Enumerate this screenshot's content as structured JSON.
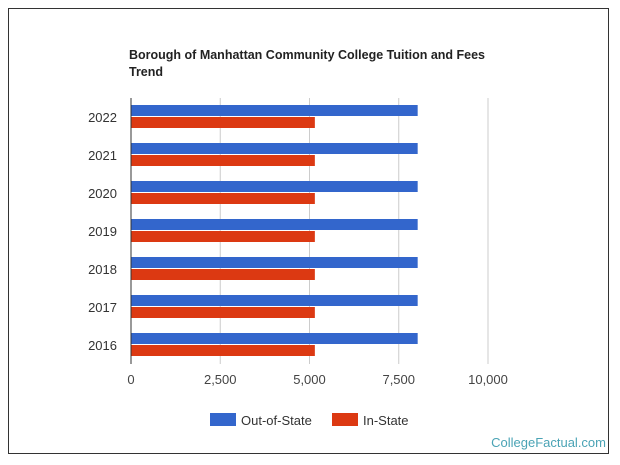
{
  "chart_data": {
    "type": "bar",
    "orientation": "horizontal",
    "title": "Borough of Manhattan Community College Tuition and Fees Trend",
    "categories": [
      "2022",
      "2021",
      "2020",
      "2019",
      "2018",
      "2017",
      "2016"
    ],
    "series": [
      {
        "name": "Out-of-State",
        "color": "#3366cc",
        "values": [
          8030,
          8030,
          8030,
          8030,
          8030,
          8030,
          8030
        ]
      },
      {
        "name": "In-State",
        "color": "#dc3912",
        "values": [
          5150,
          5150,
          5150,
          5150,
          5150,
          5150,
          5150
        ]
      }
    ],
    "xlim": [
      0,
      10000
    ],
    "xticks": [
      0,
      2500,
      5000,
      7500,
      10000
    ],
    "xtick_labels": [
      "0",
      "2,500",
      "5,000",
      "7,500",
      "10,000"
    ],
    "grid": true,
    "legend": "bottom"
  },
  "footer": "CollegeFactual.com"
}
